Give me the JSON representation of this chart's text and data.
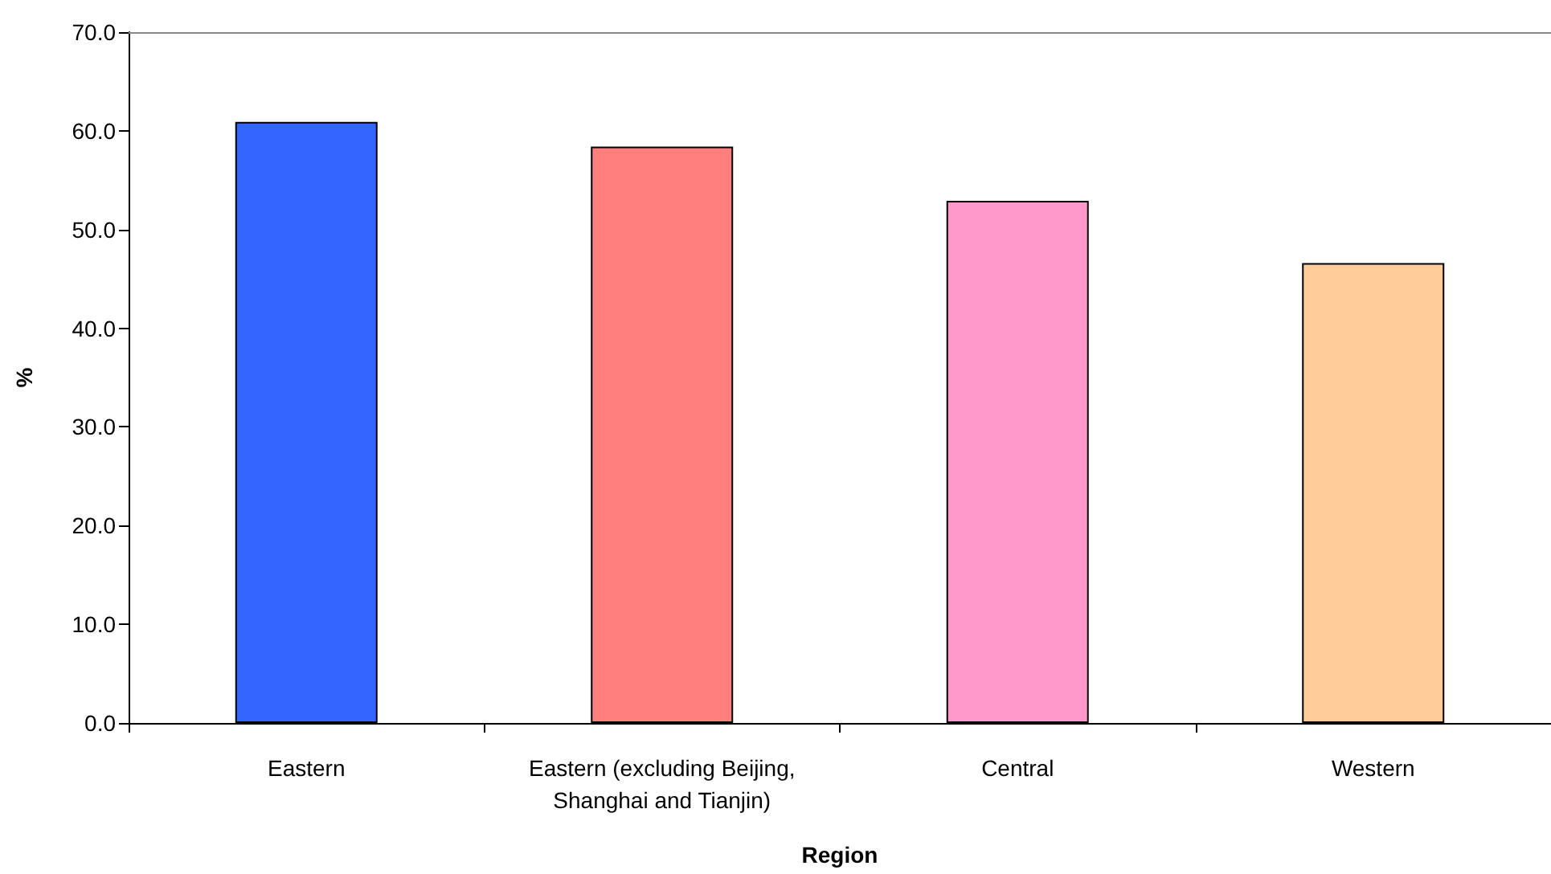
{
  "chart_data": {
    "type": "bar",
    "categories": [
      "Eastern",
      "Eastern (excluding Beijing,\nShanghai and Tianjin)",
      "Central",
      "Western"
    ],
    "values": [
      60.9,
      58.4,
      52.9,
      46.6
    ],
    "colors": [
      "#3366ff",
      "#ff7f7f",
      "#ff99cc",
      "#ffcc99"
    ],
    "xlabel": "Region",
    "ylabel": "%",
    "ylim": [
      0,
      70
    ],
    "yticks": [
      {
        "value": 0,
        "label": "0.0"
      },
      {
        "value": 10,
        "label": "10.0"
      },
      {
        "value": 20,
        "label": "20.0"
      },
      {
        "value": 30,
        "label": "30.0"
      },
      {
        "value": 40,
        "label": "40.0"
      },
      {
        "value": 50,
        "label": "50.0"
      },
      {
        "value": 60,
        "label": "60.0"
      },
      {
        "value": 70,
        "label": "70.0"
      }
    ],
    "grid": false
  }
}
